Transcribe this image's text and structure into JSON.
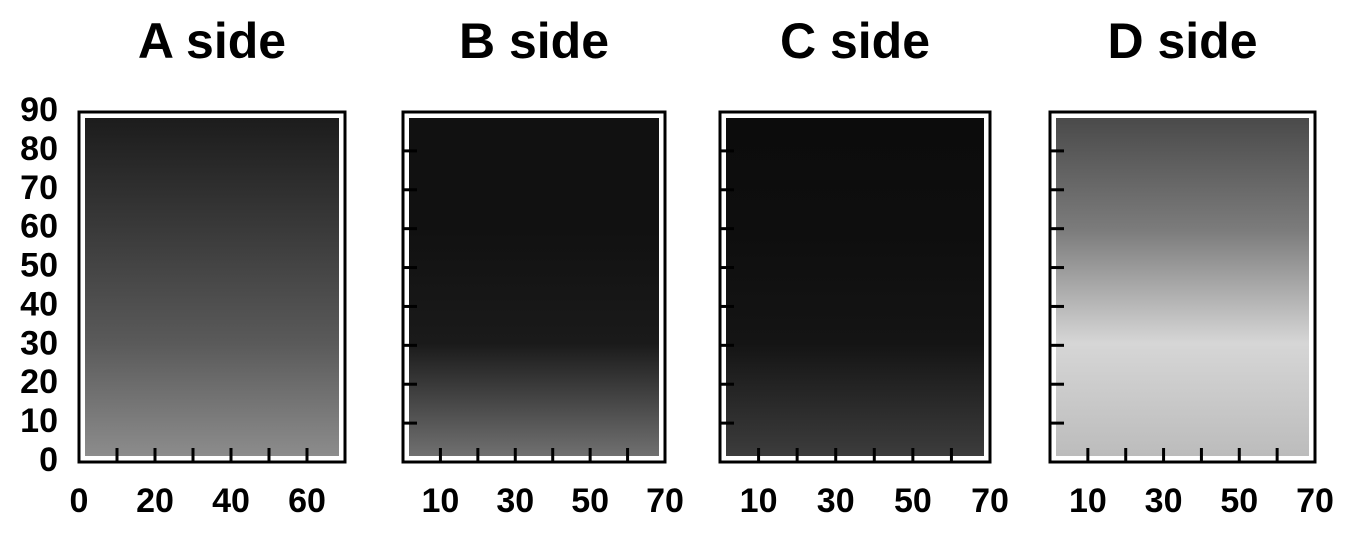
{
  "chart_data": [
    {
      "type": "heatmap",
      "title": "A side",
      "xlim": [
        0,
        70
      ],
      "xticks": [
        0,
        20,
        40,
        60
      ],
      "xminorticks": [
        10,
        20,
        30,
        40,
        50,
        60
      ],
      "ylim": [
        0,
        90
      ],
      "yticks": [
        0,
        10,
        20,
        30,
        40,
        50,
        60,
        70,
        80,
        90
      ],
      "yminorticks": [],
      "gradient": [
        "#1c1c1c",
        "#3a3a3a",
        "#5a5a5a",
        "#8c8c8c"
      ]
    },
    {
      "type": "heatmap",
      "title": "B side",
      "xlim": [
        0,
        70
      ],
      "xticks": [
        10,
        30,
        50,
        70
      ],
      "xminorticks": [
        10,
        20,
        30,
        40,
        50,
        60
      ],
      "ylim": [
        0,
        90
      ],
      "yticks": [],
      "yminorticks": [
        10,
        20,
        30,
        40,
        50,
        60,
        70,
        80
      ],
      "gradient": [
        "#111111",
        "#111111",
        "#1a1a1a",
        "#707070"
      ]
    },
    {
      "type": "heatmap",
      "title": "C side",
      "xlim": [
        0,
        70
      ],
      "xticks": [
        10,
        30,
        50,
        70
      ],
      "xminorticks": [
        10,
        20,
        30,
        40,
        50,
        60
      ],
      "ylim": [
        0,
        90
      ],
      "yticks": [],
      "yminorticks": [
        10,
        20,
        30,
        40,
        50,
        60,
        70,
        80
      ],
      "gradient": [
        "#0c0c0c",
        "#0e0e0e",
        "#141414",
        "#3c3c3c"
      ]
    },
    {
      "type": "heatmap",
      "title": "D side",
      "xlim": [
        0,
        70
      ],
      "xticks": [
        10,
        30,
        50,
        70
      ],
      "xminorticks": [
        10,
        20,
        30,
        40,
        50,
        60
      ],
      "ylim": [
        0,
        90
      ],
      "yticks": [],
      "yminorticks": [
        10,
        20,
        30,
        40,
        50,
        60,
        70,
        80
      ],
      "gradient": [
        "#4a4a4a",
        "#7c7c7c",
        "#d6d6d6",
        "#bcbcbc"
      ]
    }
  ]
}
